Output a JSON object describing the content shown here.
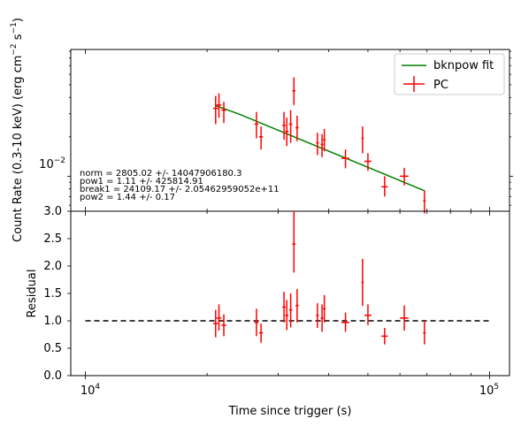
{
  "chart_data": [
    {
      "type": "scatter",
      "panel": "top",
      "ylabel": "Count Rate (0.3-10 keV) (erg cm$^{-2}$ s$^{-1}$)",
      "ylabel_main": "Count Rate (0.3-10 keV) (erg cm",
      "ylabel_exp1": "−2",
      "ylabel_mid": " s",
      "ylabel_exp2": "−1",
      "ylabel_end": ")",
      "xscale": "log",
      "yscale": "log",
      "xlim": [
        9200,
        112000
      ],
      "ylim": [
        0.0054,
        0.093
      ],
      "y_tick_label": {
        "base": "10",
        "exp": "−2",
        "value": 0.01
      },
      "legend": {
        "placement": "top-right",
        "entries": [
          {
            "label": "bknpow fit",
            "color": "#008000",
            "kind": "line"
          },
          {
            "label": "PC",
            "color": "#ff0000",
            "kind": "errorbar"
          }
        ]
      },
      "fit_text": [
        "norm = 2805.02 +/- 14047906180.3",
        "pow1 = 1.11 +/- 425814.91",
        "break1 = 24109.17 +/- 2.05462959052e+11",
        "pow2 = 1.44 +/- 0.17"
      ],
      "fit_line": [
        [
          21000,
          0.0346
        ],
        [
          24109,
          0.0297
        ],
        [
          69000,
          0.00775
        ]
      ],
      "series": [
        {
          "name": "PC",
          "color": "#ff0000",
          "points": [
            {
              "x": 21000,
              "y": 0.033,
              "ylo": 0.025,
              "yhi": 0.041,
              "xlo": 20700,
              "xhi": 21300
            },
            {
              "x": 21400,
              "y": 0.035,
              "ylo": 0.028,
              "yhi": 0.043,
              "xlo": 21100,
              "xhi": 21700
            },
            {
              "x": 22000,
              "y": 0.032,
              "ylo": 0.0255,
              "yhi": 0.037,
              "xlo": 21700,
              "xhi": 22300
            },
            {
              "x": 26500,
              "y": 0.025,
              "ylo": 0.0195,
              "yhi": 0.031,
              "xlo": 26200,
              "xhi": 26800
            },
            {
              "x": 27200,
              "y": 0.02,
              "ylo": 0.016,
              "yhi": 0.024,
              "xlo": 26900,
              "xhi": 27500
            },
            {
              "x": 31000,
              "y": 0.0245,
              "ylo": 0.019,
              "yhi": 0.031,
              "xlo": 30700,
              "xhi": 31300
            },
            {
              "x": 31500,
              "y": 0.022,
              "ylo": 0.017,
              "yhi": 0.028,
              "xlo": 31200,
              "xhi": 31800
            },
            {
              "x": 32200,
              "y": 0.025,
              "ylo": 0.018,
              "yhi": 0.032,
              "xlo": 31900,
              "xhi": 32500
            },
            {
              "x": 32800,
              "y": 0.045,
              "ylo": 0.035,
              "yhi": 0.057,
              "xlo": 32500,
              "xhi": 33100
            },
            {
              "x": 33400,
              "y": 0.0235,
              "ylo": 0.0185,
              "yhi": 0.029,
              "xlo": 33100,
              "xhi": 33700
            },
            {
              "x": 37500,
              "y": 0.018,
              "ylo": 0.0145,
              "yhi": 0.0215,
              "xlo": 37200,
              "xhi": 37800
            },
            {
              "x": 38500,
              "y": 0.0175,
              "ylo": 0.014,
              "yhi": 0.021,
              "xlo": 38200,
              "xhi": 38800
            },
            {
              "x": 39000,
              "y": 0.019,
              "ylo": 0.0155,
              "yhi": 0.023,
              "xlo": 38700,
              "xhi": 39300
            },
            {
              "x": 44000,
              "y": 0.0137,
              "ylo": 0.0115,
              "yhi": 0.016,
              "xlo": 43000,
              "xhi": 45000
            },
            {
              "x": 48500,
              "y": 0.0195,
              "ylo": 0.015,
              "yhi": 0.024,
              "xlo": 48200,
              "xhi": 48800
            },
            {
              "x": 50000,
              "y": 0.013,
              "ylo": 0.011,
              "yhi": 0.015,
              "xlo": 49000,
              "xhi": 51000
            },
            {
              "x": 55000,
              "y": 0.0083,
              "ylo": 0.007,
              "yhi": 0.01,
              "xlo": 54000,
              "xhi": 56000
            },
            {
              "x": 61500,
              "y": 0.01,
              "ylo": 0.0085,
              "yhi": 0.0116,
              "xlo": 60000,
              "xhi": 63000
            },
            {
              "x": 69000,
              "y": 0.0065,
              "ylo": 0.0052,
              "yhi": 0.0078,
              "xlo": 68500,
              "xhi": 69500
            }
          ]
        }
      ]
    },
    {
      "type": "scatter",
      "panel": "bottom",
      "xlabel": "Time since trigger (s)",
      "ylabel": "Residual",
      "xscale": "log",
      "xlim": [
        9200,
        112000
      ],
      "ylim": [
        0.0,
        3.0
      ],
      "y_ticks": [
        0.0,
        0.5,
        1.0,
        1.5,
        2.0,
        2.5,
        3.0
      ],
      "y_tick_labels": [
        "0.0",
        "0.5",
        "1.0",
        "1.5",
        "2.0",
        "2.5",
        "3.0"
      ],
      "x_tick_labels": [
        {
          "value": 10000,
          "base": "10",
          "exp": "4"
        },
        {
          "value": 100000,
          "base": "10",
          "exp": "5"
        }
      ],
      "reference_line": {
        "y": 1.0,
        "style": "dashed",
        "color": "#000000",
        "x_range": [
          10000,
          100000
        ]
      },
      "series": [
        {
          "name": "PC",
          "color": "#ff0000",
          "points": [
            {
              "x": 21000,
              "y": 0.95,
              "ylo": 0.7,
              "yhi": 1.2,
              "xlo": 20700,
              "xhi": 21300
            },
            {
              "x": 21400,
              "y": 1.05,
              "ylo": 0.82,
              "yhi": 1.3,
              "xlo": 21100,
              "xhi": 21700
            },
            {
              "x": 22000,
              "y": 0.92,
              "ylo": 0.72,
              "yhi": 1.12,
              "xlo": 21700,
              "xhi": 22300
            },
            {
              "x": 26500,
              "y": 0.97,
              "ylo": 0.72,
              "yhi": 1.22,
              "xlo": 26200,
              "xhi": 26800
            },
            {
              "x": 27200,
              "y": 0.78,
              "ylo": 0.6,
              "yhi": 0.95,
              "xlo": 26900,
              "xhi": 27500
            },
            {
              "x": 31000,
              "y": 1.25,
              "ylo": 0.97,
              "yhi": 1.53,
              "xlo": 30700,
              "xhi": 31300
            },
            {
              "x": 31500,
              "y": 1.1,
              "ylo": 0.83,
              "yhi": 1.38,
              "xlo": 31200,
              "xhi": 31800
            },
            {
              "x": 32200,
              "y": 1.2,
              "ylo": 0.88,
              "yhi": 1.5,
              "xlo": 31900,
              "xhi": 32500
            },
            {
              "x": 32800,
              "y": 2.4,
              "ylo": 1.88,
              "yhi": 3.0,
              "xlo": 32500,
              "xhi": 33100
            },
            {
              "x": 33400,
              "y": 1.28,
              "ylo": 0.97,
              "yhi": 1.58,
              "xlo": 33100,
              "xhi": 33700
            },
            {
              "x": 37500,
              "y": 1.1,
              "ylo": 0.87,
              "yhi": 1.32,
              "xlo": 37200,
              "xhi": 37800
            },
            {
              "x": 38500,
              "y": 1.05,
              "ylo": 0.8,
              "yhi": 1.3,
              "xlo": 38200,
              "xhi": 38800
            },
            {
              "x": 39000,
              "y": 1.22,
              "ylo": 0.97,
              "yhi": 1.47,
              "xlo": 38700,
              "xhi": 39300
            },
            {
              "x": 44000,
              "y": 0.97,
              "ylo": 0.8,
              "yhi": 1.15,
              "xlo": 43000,
              "xhi": 45000
            },
            {
              "x": 48500,
              "y": 1.7,
              "ylo": 1.27,
              "yhi": 2.13,
              "xlo": 48200,
              "xhi": 48800
            },
            {
              "x": 50000,
              "y": 1.1,
              "ylo": 0.92,
              "yhi": 1.3,
              "xlo": 49000,
              "xhi": 51000
            },
            {
              "x": 55000,
              "y": 0.72,
              "ylo": 0.57,
              "yhi": 0.87,
              "xlo": 54000,
              "xhi": 56000
            },
            {
              "x": 61500,
              "y": 1.05,
              "ylo": 0.82,
              "yhi": 1.28,
              "xlo": 60000,
              "xhi": 63000
            },
            {
              "x": 69000,
              "y": 0.78,
              "ylo": 0.57,
              "yhi": 1.0,
              "xlo": 68500,
              "xhi": 69500
            }
          ]
        }
      ]
    }
  ]
}
